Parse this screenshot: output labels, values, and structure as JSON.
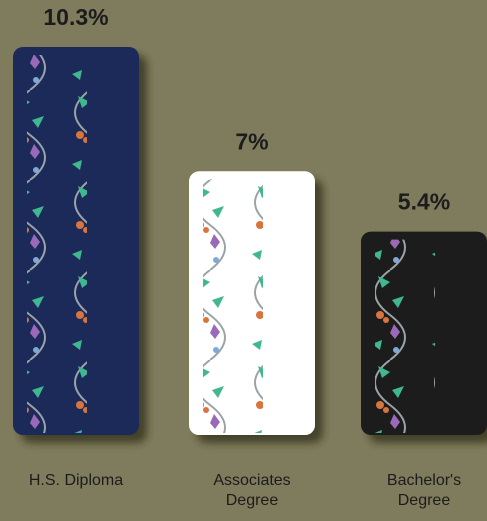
{
  "chart_data": {
    "type": "bar",
    "categories": [
      "H.S. Diploma",
      "Associates Degree",
      "Bachelor's Degree"
    ],
    "values": [
      10.3,
      7,
      5.4
    ],
    "value_labels": [
      "10.3%",
      "7%",
      "5.4%"
    ],
    "colors": [
      "#1e2a5a",
      "#ffffff",
      "#1c1a1a"
    ]
  }
}
